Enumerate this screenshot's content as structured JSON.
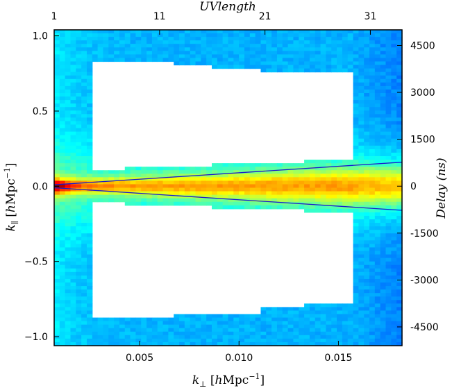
{
  "chart_data": {
    "type": "heatmap",
    "title": "",
    "xlabel_bottom": "k⊥ [hMpc⁻¹]",
    "xlabel_top": "UVlength",
    "ylabel_left": "k∥ [hMpc⁻¹]",
    "ylabel_right": "Delay (ns)",
    "xlim": [
      0.0007,
      0.0182
    ],
    "ylim": [
      -1.06,
      1.04
    ],
    "top_xlim": [
      1,
      34
    ],
    "right_ylim": [
      -5100,
      5000
    ],
    "x_ticks": [
      {
        "value": 0.005,
        "label": "0.005"
      },
      {
        "value": 0.01,
        "label": "0.010"
      },
      {
        "value": 0.015,
        "label": "0.015"
      }
    ],
    "y_ticks": [
      {
        "value": 1.0,
        "label": "1.0"
      },
      {
        "value": 0.5,
        "label": "0.5"
      },
      {
        "value": 0.0,
        "label": "0.0"
      },
      {
        "value": -0.5,
        "label": "−0.5"
      },
      {
        "value": -1.0,
        "label": "−1.0"
      }
    ],
    "top_ticks": [
      {
        "value": 1,
        "label": "1"
      },
      {
        "value": 11,
        "label": "11"
      },
      {
        "value": 21,
        "label": "21"
      },
      {
        "value": 31,
        "label": "31"
      }
    ],
    "right_ticks": [
      {
        "value": 4500,
        "label": "4500"
      },
      {
        "value": 3000,
        "label": "3000"
      },
      {
        "value": 1500,
        "label": "1500"
      },
      {
        "value": 0,
        "label": "0"
      },
      {
        "value": -1500,
        "label": "-1500"
      },
      {
        "value": -3000,
        "label": "-3000"
      },
      {
        "value": -4500,
        "label": "-4500"
      }
    ],
    "heatmap": {
      "x_bins": 64,
      "y_bins": 90,
      "colormap": "jet",
      "peak_location": {
        "kperp": 0.0007,
        "kpar": 0.0
      },
      "masked_region_upper": [
        {
          "x0": 0.00268,
          "x1": 0.00425,
          "y_low": 0.11,
          "y_high": 0.84
        },
        {
          "x0": 0.00425,
          "x1": 0.0068,
          "y_low": 0.12,
          "y_high": 0.83
        },
        {
          "x0": 0.0068,
          "x1": 0.0085,
          "y_low": 0.13,
          "y_high": 0.81
        },
        {
          "x0": 0.0085,
          "x1": 0.011,
          "y_low": 0.15,
          "y_high": 0.79
        },
        {
          "x0": 0.011,
          "x1": 0.0134,
          "y_low": 0.16,
          "y_high": 0.77
        },
        {
          "x0": 0.0134,
          "x1": 0.0157,
          "y_low": 0.18,
          "y_high": 0.75
        }
      ],
      "masked_region_lower": [
        {
          "x0": 0.00268,
          "x1": 0.00425,
          "y_low": -0.88,
          "y_high": -0.11
        },
        {
          "x0": 0.00425,
          "x1": 0.0068,
          "y_low": -0.87,
          "y_high": -0.12
        },
        {
          "x0": 0.0068,
          "x1": 0.0085,
          "y_low": -0.86,
          "y_high": -0.13
        },
        {
          "x0": 0.0085,
          "x1": 0.011,
          "y_low": -0.84,
          "y_high": -0.15
        },
        {
          "x0": 0.011,
          "x1": 0.0134,
          "y_low": -0.81,
          "y_high": -0.16
        },
        {
          "x0": 0.0134,
          "x1": 0.0157,
          "y_low": -0.79,
          "y_high": -0.18
        }
      ]
    },
    "horizon_lines": [
      {
        "name": "",
        "color": "#1a1acc",
        "x": [
          0.0007,
          0.0182
        ],
        "y": [
          0.01,
          0.16
        ]
      },
      {
        "name": "",
        "color": "#1a1acc",
        "x": [
          0.0007,
          0.0182
        ],
        "y": [
          -0.01,
          -0.16
        ]
      }
    ]
  }
}
